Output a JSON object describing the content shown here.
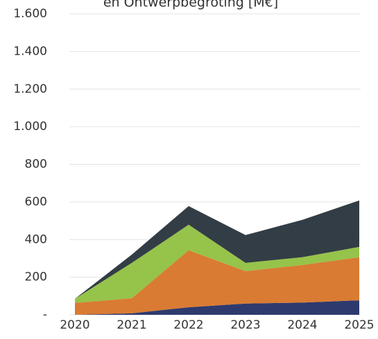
{
  "chart_data": {
    "type": "stacked_area",
    "title": "en Ontwerpbegroting [M€]",
    "categories": [
      "2020",
      "2021",
      "2022",
      "2023",
      "2024",
      "2025"
    ],
    "series": [
      {
        "color": "#2e3a6e",
        "values": [
          0,
          8,
          40,
          60,
          65,
          77
        ]
      },
      {
        "color": "#d97b33",
        "values": [
          63,
          80,
          303,
          172,
          200,
          229
        ]
      },
      {
        "color": "#96c34a",
        "values": [
          22,
          188,
          136,
          44,
          41,
          55
        ]
      },
      {
        "color": "#333d45",
        "values": [
          0,
          44,
          99,
          148,
          199,
          247
        ]
      }
    ],
    "ylim": [
      0,
      1600
    ],
    "yticks": [
      {
        "value": 0,
        "label": "-"
      },
      200,
      400,
      600,
      800,
      {
        "value": 1000,
        "label": "1.000"
      },
      {
        "value": 1200,
        "label": "1.200"
      },
      {
        "value": 1400,
        "label": "1.400"
      },
      {
        "value": 1600,
        "label": "1.600"
      }
    ],
    "grid": true
  }
}
